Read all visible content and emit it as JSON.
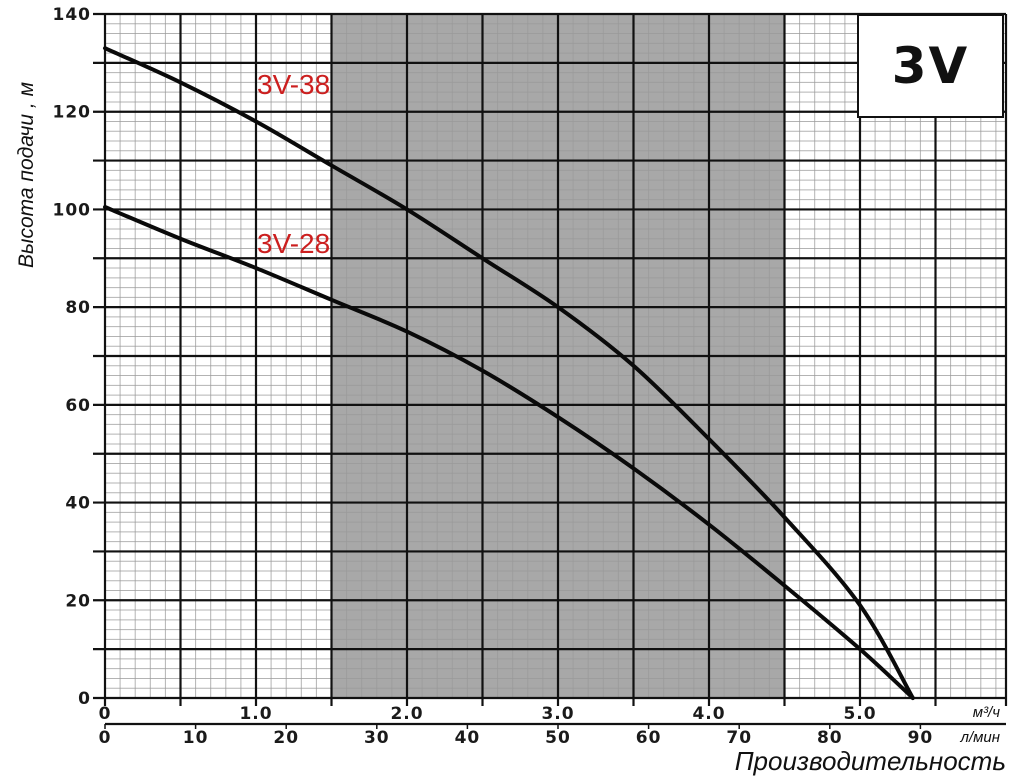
{
  "chart_data": {
    "type": "line",
    "title": "3V",
    "xlabel": "Производительность",
    "ylabel": "Высота подачи , м",
    "x_units_primary": "м³/ч",
    "x_units_secondary": "л/мин",
    "xlim": [
      0,
      6.0
    ],
    "ylim": [
      0,
      140
    ],
    "grid": true,
    "y_ticks": [
      0,
      20,
      40,
      60,
      80,
      100,
      120,
      140
    ],
    "x_ticks_primary": [
      {
        "value": 0,
        "label": "0"
      },
      {
        "value": 1.0,
        "label": "1.0"
      },
      {
        "value": 2.0,
        "label": "2.0"
      },
      {
        "value": 3.0,
        "label": "3.0"
      },
      {
        "value": 4.0,
        "label": "4.0"
      },
      {
        "value": 5.0,
        "label": "5.0"
      }
    ],
    "x_ticks_secondary": [
      "0",
      "10",
      "20",
      "30",
      "40",
      "50",
      "60",
      "70",
      "80",
      "90"
    ],
    "shaded_region": {
      "x_from": 1.5,
      "x_to": 4.5,
      "color": "#a8a8a8",
      "meaning": "recommended operating range"
    },
    "series": [
      {
        "name": "3V-38",
        "x": [
          0,
          0.5,
          1.0,
          1.5,
          2.0,
          2.5,
          3.0,
          3.5,
          4.0,
          4.5,
          5.0,
          5.35
        ],
        "values": [
          133,
          126,
          118,
          109,
          100,
          90,
          80,
          68,
          53,
          37,
          19,
          0
        ]
      },
      {
        "name": "3V-28",
        "x": [
          0,
          0.5,
          1.0,
          1.5,
          2.0,
          2.5,
          3.0,
          3.5,
          4.0,
          4.5,
          5.0,
          5.35
        ],
        "values": [
          100.5,
          94,
          88,
          81.5,
          75,
          67,
          57.5,
          47,
          35.5,
          23,
          10,
          0
        ]
      }
    ],
    "annotations": [
      {
        "text": "3V-38",
        "color": "#cc1f1f"
      },
      {
        "text": "3V-28",
        "color": "#cc1f1f"
      }
    ]
  },
  "labels": {
    "brand": "3V",
    "series_38": "3V-38",
    "series_28": "3V-28",
    "y_axis_title": "Высота подачи , м",
    "x_axis_title": "Производительность",
    "unit_m3h": "м³/ч",
    "unit_lmin": "л/мин"
  }
}
